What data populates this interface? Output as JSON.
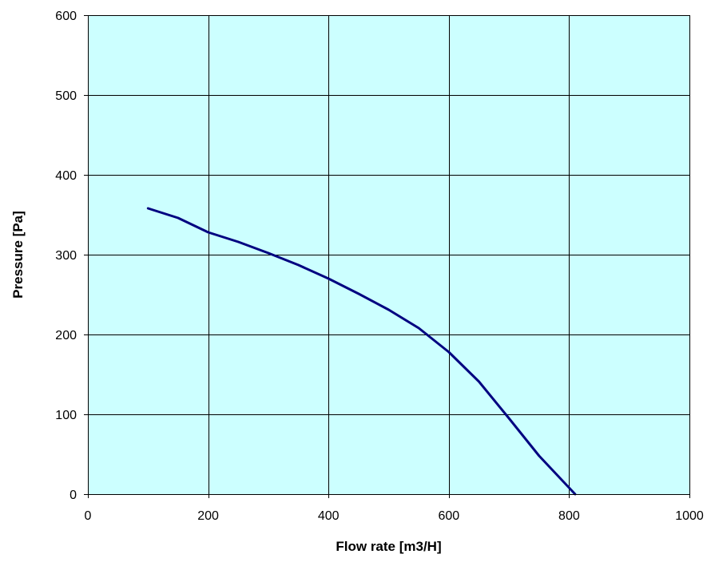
{
  "chart_data": {
    "type": "line",
    "title": "",
    "xlabel": "Flow rate [m3/H]",
    "ylabel": "Pressure [Pa]",
    "xlim": [
      0,
      1000
    ],
    "ylim": [
      0,
      600
    ],
    "x_ticks": [
      0,
      200,
      400,
      600,
      800,
      1000
    ],
    "y_ticks": [
      0,
      100,
      200,
      300,
      400,
      500,
      600
    ],
    "x_tick_labels": [
      "0",
      "200",
      "400",
      "600",
      "800",
      "1000"
    ],
    "y_tick_labels": [
      "0",
      "100",
      "200",
      "300",
      "400",
      "500",
      "600"
    ],
    "grid": true,
    "legend": "none",
    "series": [
      {
        "points": [
          {
            "x": 100,
            "y": 358
          },
          {
            "x": 150,
            "y": 346
          },
          {
            "x": 200,
            "y": 328
          },
          {
            "x": 250,
            "y": 316
          },
          {
            "x": 300,
            "y": 302
          },
          {
            "x": 350,
            "y": 287
          },
          {
            "x": 400,
            "y": 270
          },
          {
            "x": 450,
            "y": 251
          },
          {
            "x": 500,
            "y": 231
          },
          {
            "x": 550,
            "y": 208
          },
          {
            "x": 600,
            "y": 178
          },
          {
            "x": 650,
            "y": 141
          },
          {
            "x": 700,
            "y": 95
          },
          {
            "x": 750,
            "y": 48
          },
          {
            "x": 810,
            "y": 0
          }
        ]
      }
    ]
  },
  "colors": {
    "plot_background": "#ccffff",
    "grid": "#000000",
    "line": "#000080",
    "text": "#000000"
  }
}
